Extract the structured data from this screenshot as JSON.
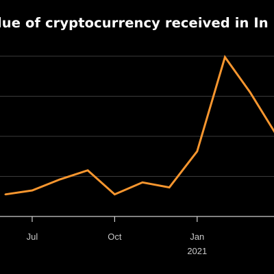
{
  "chart_data": {
    "type": "line",
    "title": "lue of cryptocurrency received in In",
    "x": [
      "2020-06-01",
      "2020-07-01",
      "2020-08-01",
      "2020-09-01",
      "2020-10-01",
      "2020-11-01",
      "2020-12-01",
      "2021-01-01",
      "2021-02-01",
      "2021-03-01",
      "2021-04-01"
    ],
    "series": [
      {
        "values": [
          22,
          26,
          37,
          46,
          22,
          34,
          29,
          65,
          159,
          124,
          79
        ]
      }
    ],
    "x_ticks": [
      {
        "x": "2020-07-01",
        "label": "Jul"
      },
      {
        "x": "2020-10-01",
        "label": "Oct"
      },
      {
        "x": "2021-01-01",
        "label": "Jan",
        "sublabel": "2021"
      }
    ],
    "xlim": [
      "2020-05-20",
      "2021-04-12"
    ],
    "ylim": [
      0,
      175
    ],
    "y_gridlines": [
      0,
      40,
      80,
      120,
      160
    ],
    "grid": true,
    "line_color": "#f7962f",
    "grid_color": "#3c3c3c",
    "axis_color": "#d0d0d0",
    "background": "#000000"
  }
}
